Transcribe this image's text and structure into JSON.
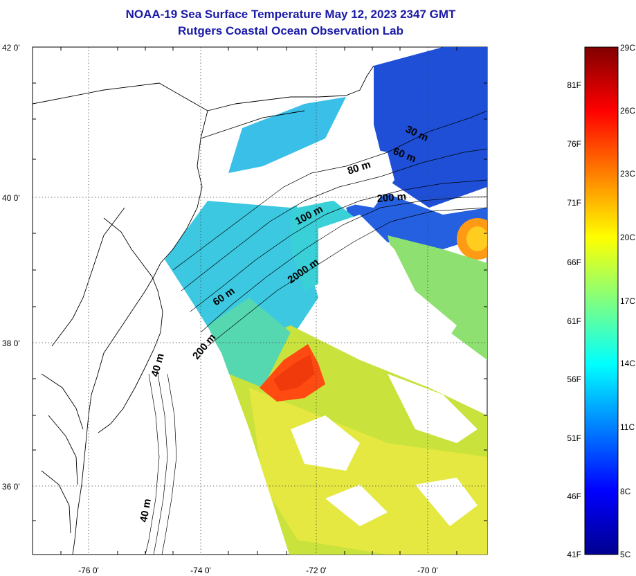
{
  "title": {
    "line1": "NOAA-19 Sea Surface Temperature May 12, 2023 2347 GMT",
    "line2": "Rutgers Coastal Ocean Observation Lab"
  },
  "map": {
    "lon_range": [
      -77.2,
      -69.0
    ],
    "lat_range": [
      35.0,
      42.0
    ],
    "lat_ticks": [
      {
        "value": 42,
        "label": "42 0'"
      },
      {
        "value": 40,
        "label": "40 0'"
      },
      {
        "value": 38,
        "label": "38 0'"
      },
      {
        "value": 36,
        "label": "36 0'"
      }
    ],
    "lon_ticks": [
      {
        "value": -76,
        "label": "-76 0'"
      },
      {
        "value": -74,
        "label": "-74 0'"
      },
      {
        "value": -72,
        "label": "-72 0'"
      },
      {
        "value": -70,
        "label": "-70 0'"
      }
    ],
    "grid": "dotted",
    "contour_labels": [
      {
        "text": "30 m"
      },
      {
        "text": "60 m"
      },
      {
        "text": "80 m"
      },
      {
        "text": "200 m"
      },
      {
        "text": "100 m"
      },
      {
        "text": "2000 m"
      },
      {
        "text": "60 m"
      },
      {
        "text": "200 m"
      },
      {
        "text": "40 m"
      },
      {
        "text": "40 m"
      }
    ]
  },
  "colorbar": {
    "range_c": [
      5,
      29
    ],
    "fahrenheit": [
      "81F",
      "76F",
      "71F",
      "66F",
      "61F",
      "56F",
      "51F",
      "46F",
      "41F"
    ],
    "celsius": [
      "29C",
      "26C",
      "23C",
      "20C",
      "17C",
      "14C",
      "11C",
      "8C",
      "5C"
    ],
    "colors": [
      "#00008f",
      "#0000ff",
      "#0080ff",
      "#00ffff",
      "#80ff80",
      "#ffff00",
      "#ff8000",
      "#ff0000",
      "#800000"
    ]
  },
  "colors": {
    "title": "#1a1aa6",
    "cold": "#1d4fd8",
    "cool": "#33b6e6",
    "mild": "#4fd6c4",
    "warm": "#c8e040",
    "hot": "#ff3a10",
    "land_bg": "#ffffff"
  }
}
